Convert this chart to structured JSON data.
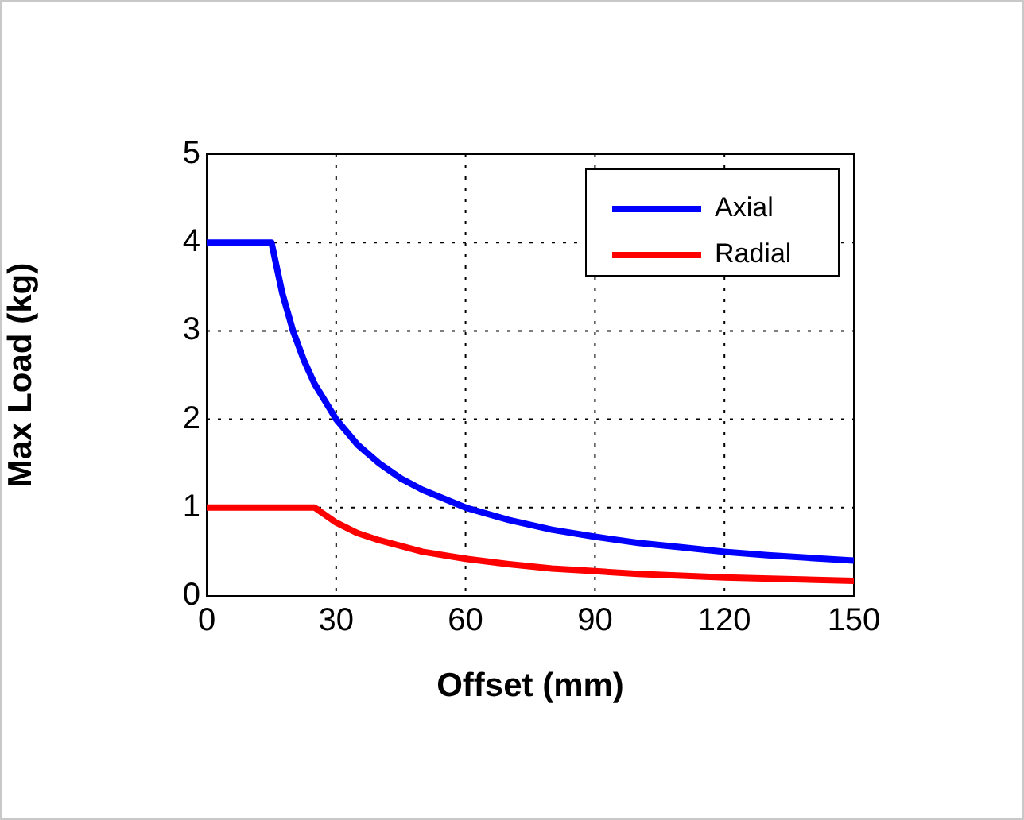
{
  "chart_data": {
    "type": "line",
    "xlabel": "Offset (mm)",
    "ylabel": "Max Load (kg)",
    "xlim": [
      0,
      150
    ],
    "xticks": [
      0,
      30,
      60,
      90,
      120,
      150
    ],
    "ylim": [
      0,
      5
    ],
    "yticks": [
      0,
      1,
      2,
      3,
      4,
      5
    ],
    "grid": true,
    "legend": "top right",
    "marker": "none",
    "line_style": "solid",
    "series": [
      {
        "name": "Axial",
        "color": "#0000ff",
        "x": [
          0,
          15,
          17.5,
          20,
          22.5,
          25,
          30,
          35,
          40,
          45,
          50,
          60,
          70,
          80,
          90,
          100,
          110,
          120,
          130,
          140,
          150
        ],
        "values": [
          4,
          4,
          3.43,
          3,
          2.67,
          2.4,
          2,
          1.71,
          1.5,
          1.33,
          1.2,
          1,
          0.86,
          0.75,
          0.67,
          0.6,
          0.55,
          0.5,
          0.46,
          0.43,
          0.4
        ]
      },
      {
        "name": "Radial",
        "color": "#ff0000",
        "x": [
          0,
          25,
          30,
          35,
          40,
          50,
          60,
          70,
          80,
          90,
          100,
          120,
          150
        ],
        "values": [
          1,
          1,
          0.83,
          0.71,
          0.63,
          0.5,
          0.42,
          0.36,
          0.31,
          0.28,
          0.25,
          0.21,
          0.17
        ]
      }
    ]
  }
}
